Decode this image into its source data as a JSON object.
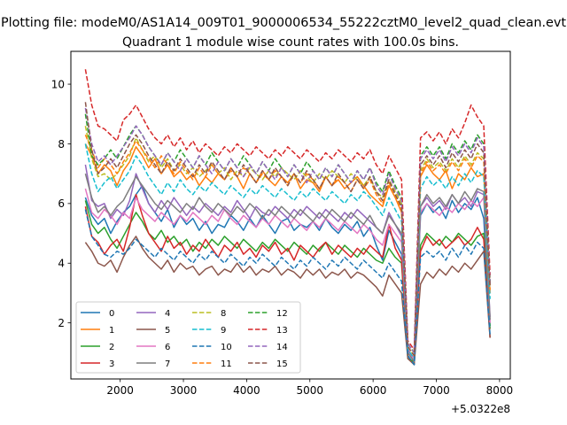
{
  "figure": {
    "suptitle": "Plotting file: modeM0/AS1A14_009T01_9000006534_55222cztM0_level2_quad_clean.evt",
    "background": "#ffffff"
  },
  "chart_data": {
    "type": "line",
    "title": "Quadrant 1 module wise count rates with 100.0s bins.",
    "xlabel": "",
    "ylabel": "",
    "x_offset_label": "+5.0322e8",
    "xlim": [
      1220,
      8170
    ],
    "ylim": [
      0.12,
      11.1
    ],
    "xticks": [
      2000,
      3000,
      4000,
      5000,
      6000,
      7000,
      8000
    ],
    "xtick_labels": [
      "2000",
      "3000",
      "4000",
      "5000",
      "6000",
      "7000",
      "8000"
    ],
    "yticks": [
      2,
      4,
      6,
      8,
      10
    ],
    "ytick_labels": [
      "2",
      "4",
      "6",
      "8",
      "10"
    ],
    "grid": false,
    "legend": {
      "loc": "lower-left",
      "ncol": 4
    },
    "x": [
      1450,
      1550,
      1650,
      1750,
      1850,
      1950,
      2050,
      2150,
      2250,
      2350,
      2450,
      2550,
      2650,
      2750,
      2850,
      2950,
      3050,
      3150,
      3250,
      3350,
      3450,
      3550,
      3650,
      3750,
      3850,
      3950,
      4050,
      4150,
      4250,
      4350,
      4450,
      4550,
      4650,
      4750,
      4850,
      4950,
      5050,
      5150,
      5250,
      5350,
      5450,
      5550,
      5650,
      5750,
      5850,
      5950,
      6050,
      6150,
      6250,
      6350,
      6450,
      6550,
      6650,
      6750,
      6850,
      6950,
      7050,
      7150,
      7250,
      7350,
      7450,
      7550,
      7650,
      7750,
      7850
    ],
    "series": [
      {
        "name": "0",
        "color": "#1f77b4",
        "style": "solid",
        "values": [
          6.2,
          5.6,
          5.3,
          5.5,
          5.0,
          5.4,
          5.7,
          5.9,
          6.3,
          6.6,
          6.0,
          5.7,
          5.4,
          5.8,
          5.2,
          5.6,
          5.3,
          5.5,
          5.1,
          5.4,
          5.0,
          5.3,
          5.2,
          5.6,
          5.4,
          5.1,
          5.5,
          5.2,
          5.6,
          5.3,
          5.0,
          5.4,
          5.5,
          5.1,
          5.3,
          5.2,
          5.4,
          5.1,
          5.5,
          5.2,
          5.0,
          5.3,
          5.1,
          5.4,
          4.9,
          5.2,
          4.6,
          4.1,
          5.1,
          4.7,
          4.3,
          0.9,
          0.6,
          5.6,
          6.0,
          5.7,
          5.9,
          5.5,
          6.1,
          5.7,
          6.0,
          5.8,
          6.2,
          5.5,
          1.9
        ]
      },
      {
        "name": "1",
        "color": "#ff7f0e",
        "style": "solid",
        "values": [
          8.0,
          7.6,
          7.0,
          7.3,
          7.1,
          6.6,
          7.1,
          7.4,
          7.9,
          7.6,
          7.2,
          7.5,
          7.0,
          7.3,
          6.9,
          7.1,
          6.8,
          7.0,
          6.6,
          6.9,
          6.7,
          7.0,
          6.8,
          7.2,
          6.9,
          6.5,
          7.0,
          6.7,
          7.1,
          6.8,
          6.6,
          6.9,
          6.7,
          7.0,
          6.5,
          6.8,
          6.7,
          6.4,
          6.9,
          6.6,
          6.8,
          6.5,
          6.7,
          6.9,
          6.6,
          6.3,
          6.1,
          5.9,
          6.6,
          6.2,
          5.7,
          1.1,
          0.8,
          6.9,
          7.3,
          7.0,
          6.8,
          7.1,
          6.5,
          7.0,
          6.8,
          7.2,
          6.9,
          7.0,
          3.0
        ]
      },
      {
        "name": "2",
        "color": "#2ca02c",
        "style": "solid",
        "values": [
          6.1,
          5.3,
          5.0,
          5.2,
          4.8,
          4.5,
          4.9,
          5.3,
          5.7,
          5.4,
          5.0,
          4.8,
          5.1,
          4.7,
          4.9,
          4.6,
          4.8,
          4.4,
          4.7,
          4.5,
          4.8,
          4.6,
          4.9,
          4.7,
          4.5,
          4.8,
          4.6,
          4.4,
          4.7,
          4.5,
          4.8,
          4.6,
          4.4,
          4.7,
          4.5,
          4.3,
          4.6,
          4.4,
          4.7,
          4.5,
          4.3,
          4.6,
          4.4,
          4.2,
          4.5,
          4.3,
          4.1,
          4.0,
          4.5,
          4.2,
          4.0,
          0.8,
          0.7,
          4.6,
          5.0,
          4.8,
          4.6,
          4.9,
          4.7,
          5.0,
          4.8,
          4.6,
          4.9,
          5.0,
          1.8
        ]
      },
      {
        "name": "3",
        "color": "#d62728",
        "style": "solid",
        "values": [
          5.9,
          4.9,
          4.7,
          4.3,
          4.6,
          4.8,
          4.4,
          5.2,
          6.3,
          5.6,
          5.0,
          4.7,
          4.4,
          4.9,
          4.5,
          4.7,
          4.3,
          4.6,
          4.4,
          4.8,
          4.5,
          4.2,
          4.6,
          4.4,
          4.7,
          4.3,
          4.5,
          4.2,
          4.6,
          4.4,
          4.7,
          4.3,
          4.5,
          4.1,
          4.6,
          4.4,
          4.2,
          4.5,
          4.7,
          4.3,
          4.6,
          4.4,
          4.2,
          4.5,
          4.3,
          4.6,
          4.4,
          4.2,
          5.3,
          4.5,
          4.1,
          1.0,
          0.7,
          4.4,
          4.9,
          4.6,
          4.8,
          4.5,
          4.7,
          4.9,
          4.6,
          4.8,
          5.2,
          4.8,
          1.5
        ]
      },
      {
        "name": "4",
        "color": "#9467bd",
        "style": "solid",
        "values": [
          7.3,
          6.1,
          5.9,
          6.0,
          5.5,
          5.8,
          5.6,
          6.1,
          7.0,
          6.5,
          6.0,
          5.7,
          6.1,
          5.8,
          6.2,
          5.9,
          5.6,
          5.9,
          5.7,
          6.0,
          5.8,
          5.6,
          5.9,
          5.7,
          6.1,
          5.8,
          5.5,
          5.9,
          5.7,
          5.6,
          5.9,
          5.7,
          5.5,
          5.8,
          5.6,
          5.9,
          5.7,
          5.5,
          5.8,
          5.6,
          5.4,
          5.7,
          5.5,
          5.8,
          5.6,
          5.4,
          5.2,
          5.0,
          5.7,
          5.3,
          4.9,
          1.1,
          0.8,
          5.9,
          6.2,
          5.9,
          6.1,
          5.8,
          6.3,
          6.0,
          6.2,
          5.9,
          6.4,
          6.3,
          2.2
        ]
      },
      {
        "name": "5",
        "color": "#8c564b",
        "style": "solid",
        "values": [
          4.7,
          4.4,
          4.0,
          3.9,
          4.1,
          3.7,
          4.2,
          4.6,
          4.9,
          4.5,
          4.2,
          4.0,
          3.8,
          4.1,
          3.7,
          4.0,
          3.8,
          3.9,
          3.6,
          3.8,
          3.9,
          3.6,
          3.8,
          3.7,
          4.0,
          3.7,
          3.9,
          3.6,
          3.8,
          3.7,
          3.9,
          3.6,
          3.8,
          3.7,
          3.5,
          3.8,
          3.6,
          3.8,
          3.5,
          3.7,
          3.6,
          3.8,
          3.5,
          3.7,
          3.6,
          3.4,
          3.2,
          2.9,
          3.6,
          3.3,
          3.0,
          0.8,
          0.6,
          3.3,
          3.7,
          3.5,
          3.8,
          3.6,
          3.9,
          3.7,
          4.0,
          3.8,
          4.1,
          4.4,
          1.5
        ]
      },
      {
        "name": "6",
        "color": "#e377c2",
        "style": "solid",
        "values": [
          6.5,
          5.7,
          5.5,
          5.8,
          5.6,
          5.3,
          5.7,
          5.5,
          6.2,
          5.8,
          5.6,
          5.4,
          5.7,
          5.5,
          5.3,
          5.6,
          5.4,
          5.7,
          5.5,
          5.3,
          5.6,
          5.4,
          5.8,
          5.5,
          5.3,
          5.6,
          5.4,
          5.2,
          5.5,
          5.3,
          5.6,
          5.4,
          5.2,
          5.5,
          5.3,
          5.1,
          5.4,
          5.2,
          5.5,
          5.3,
          5.1,
          5.4,
          5.2,
          5.0,
          5.3,
          5.1,
          4.8,
          4.6,
          5.3,
          5.0,
          4.7,
          1.0,
          0.8,
          5.7,
          6.0,
          5.8,
          5.6,
          5.9,
          5.7,
          6.0,
          5.8,
          6.1,
          5.9,
          6.2,
          2.0
        ]
      },
      {
        "name": "7",
        "color": "#7f7f7f",
        "style": "solid",
        "values": [
          7.0,
          6.2,
          5.7,
          5.9,
          5.6,
          5.9,
          6.1,
          6.5,
          6.9,
          6.6,
          6.3,
          6.0,
          5.8,
          6.1,
          5.9,
          5.7,
          6.0,
          5.8,
          6.2,
          5.9,
          5.7,
          6.0,
          5.8,
          5.6,
          5.9,
          5.7,
          6.0,
          5.8,
          5.5,
          5.8,
          5.6,
          5.9,
          5.7,
          5.5,
          5.8,
          5.6,
          5.4,
          5.7,
          5.5,
          5.8,
          5.6,
          5.4,
          5.7,
          5.5,
          5.3,
          5.6,
          5.2,
          5.0,
          5.6,
          5.3,
          5.0,
          1.0,
          0.7,
          5.9,
          6.3,
          6.0,
          6.2,
          5.9,
          6.3,
          6.0,
          6.4,
          6.1,
          6.5,
          6.4,
          2.1
        ]
      },
      {
        "name": "8",
        "color": "#bcbd22",
        "style": "dashed",
        "values": [
          8.6,
          7.5,
          6.9,
          7.0,
          6.8,
          7.0,
          7.3,
          7.6,
          8.2,
          7.8,
          7.4,
          7.6,
          7.2,
          7.5,
          7.1,
          7.3,
          7.0,
          7.2,
          6.9,
          7.1,
          7.3,
          7.0,
          7.2,
          6.8,
          7.1,
          6.9,
          7.2,
          7.0,
          6.8,
          7.1,
          6.9,
          7.2,
          7.0,
          6.8,
          7.1,
          6.9,
          6.7,
          7.0,
          6.8,
          7.1,
          6.9,
          6.7,
          7.0,
          6.8,
          6.6,
          6.9,
          6.4,
          6.2,
          6.8,
          6.4,
          6.0,
          1.2,
          0.9,
          7.1,
          7.5,
          7.2,
          7.4,
          7.1,
          7.5,
          7.2,
          7.6,
          7.3,
          7.7,
          7.5,
          3.2
        ]
      },
      {
        "name": "9",
        "color": "#17becf",
        "style": "dashed",
        "values": [
          8.0,
          7.0,
          6.4,
          6.7,
          6.9,
          6.5,
          6.8,
          7.1,
          7.6,
          7.3,
          6.9,
          6.6,
          6.3,
          6.7,
          6.4,
          6.8,
          6.5,
          6.3,
          6.6,
          6.4,
          6.7,
          6.5,
          6.3,
          6.6,
          6.4,
          6.2,
          6.5,
          6.3,
          6.6,
          6.4,
          6.2,
          6.5,
          6.3,
          6.1,
          6.4,
          6.2,
          6.5,
          6.3,
          6.1,
          6.4,
          6.2,
          6.0,
          6.3,
          6.1,
          6.4,
          6.2,
          5.9,
          5.6,
          6.2,
          5.8,
          5.4,
          1.1,
          0.8,
          6.5,
          6.9,
          6.6,
          6.8,
          6.5,
          6.9,
          6.6,
          7.0,
          6.7,
          7.1,
          6.9,
          2.8
        ]
      },
      {
        "name": "10",
        "color": "#1f77b4",
        "style": "dashed",
        "values": [
          5.8,
          4.9,
          4.6,
          4.3,
          4.2,
          4.4,
          4.3,
          4.5,
          4.8,
          4.6,
          4.4,
          4.2,
          4.5,
          4.3,
          4.1,
          4.4,
          4.2,
          4.0,
          4.3,
          4.1,
          4.4,
          4.2,
          4.0,
          4.3,
          4.1,
          3.9,
          4.2,
          4.0,
          4.3,
          4.1,
          3.9,
          4.2,
          4.0,
          3.8,
          4.1,
          3.9,
          4.2,
          4.0,
          3.8,
          4.1,
          3.9,
          4.2,
          4.0,
          3.8,
          4.1,
          3.9,
          3.7,
          3.5,
          4.0,
          3.7,
          3.4,
          0.9,
          0.6,
          4.2,
          4.4,
          4.2,
          4.4,
          4.1,
          4.5,
          4.2,
          4.6,
          4.3,
          4.7,
          4.5,
          1.6
        ]
      },
      {
        "name": "11",
        "color": "#ff7f0e",
        "style": "dashed",
        "values": [
          8.3,
          7.8,
          7.2,
          7.5,
          7.3,
          7.0,
          7.4,
          7.7,
          8.1,
          7.8,
          7.5,
          7.2,
          7.6,
          7.3,
          7.0,
          7.4,
          7.1,
          6.8,
          7.2,
          6.9,
          7.3,
          7.0,
          6.8,
          7.1,
          6.9,
          7.2,
          7.0,
          6.7,
          7.0,
          6.8,
          7.1,
          6.9,
          6.6,
          7.0,
          6.7,
          7.0,
          6.8,
          6.5,
          6.9,
          6.6,
          6.9,
          6.7,
          6.4,
          6.8,
          6.5,
          6.8,
          6.3,
          6.0,
          6.7,
          6.3,
          5.8,
          1.2,
          0.9,
          7.0,
          7.4,
          7.1,
          7.3,
          7.0,
          7.4,
          7.1,
          7.5,
          7.2,
          7.6,
          7.4,
          3.1
        ]
      },
      {
        "name": "12",
        "color": "#2ca02c",
        "style": "dashed",
        "values": [
          9.0,
          7.6,
          7.3,
          7.5,
          7.8,
          7.5,
          7.9,
          8.3,
          8.6,
          8.3,
          7.9,
          7.6,
          7.3,
          7.7,
          7.4,
          7.8,
          7.5,
          7.2,
          7.6,
          7.3,
          7.7,
          7.4,
          7.1,
          7.5,
          7.2,
          7.6,
          7.3,
          7.0,
          7.4,
          7.1,
          7.5,
          7.2,
          6.9,
          7.3,
          7.0,
          7.4,
          7.1,
          6.8,
          7.2,
          6.9,
          7.3,
          7.0,
          6.7,
          7.1,
          6.8,
          7.2,
          6.7,
          6.4,
          7.1,
          6.6,
          6.2,
          1.3,
          1.0,
          7.6,
          7.9,
          7.6,
          7.9,
          7.5,
          8.0,
          7.7,
          8.1,
          7.8,
          8.3,
          8.0,
          3.4
        ]
      },
      {
        "name": "13",
        "color": "#d62728",
        "style": "dashed",
        "values": [
          10.5,
          9.3,
          8.6,
          8.5,
          8.3,
          8.1,
          8.8,
          9.0,
          9.3,
          8.9,
          8.5,
          8.2,
          8.0,
          8.3,
          7.9,
          8.2,
          7.8,
          8.1,
          7.7,
          8.0,
          7.8,
          7.6,
          7.9,
          7.7,
          8.0,
          7.8,
          7.6,
          7.9,
          7.7,
          7.5,
          7.8,
          7.6,
          7.9,
          7.7,
          7.5,
          7.8,
          7.6,
          7.4,
          7.7,
          7.5,
          7.8,
          7.6,
          7.4,
          7.7,
          7.5,
          7.8,
          7.3,
          7.0,
          7.6,
          7.2,
          6.8,
          1.4,
          1.1,
          8.2,
          8.4,
          8.1,
          8.4,
          8.0,
          8.5,
          8.2,
          8.7,
          9.3,
          8.9,
          8.6,
          3.6
        ]
      },
      {
        "name": "14",
        "color": "#9467bd",
        "style": "dashed",
        "values": [
          9.2,
          8.0,
          7.4,
          7.6,
          7.3,
          7.6,
          7.9,
          8.2,
          8.6,
          8.3,
          7.9,
          7.6,
          7.3,
          7.7,
          7.4,
          7.1,
          7.5,
          7.2,
          7.6,
          7.3,
          7.0,
          7.4,
          7.1,
          7.5,
          7.2,
          6.9,
          7.3,
          7.0,
          7.4,
          7.1,
          6.8,
          7.2,
          6.9,
          7.3,
          7.0,
          6.7,
          7.1,
          6.8,
          7.2,
          6.9,
          7.3,
          7.0,
          6.7,
          7.1,
          6.8,
          7.2,
          6.6,
          6.3,
          7.0,
          6.5,
          6.1,
          1.3,
          1.0,
          7.5,
          7.8,
          7.5,
          7.8,
          7.4,
          7.9,
          7.6,
          8.0,
          7.7,
          8.2,
          7.9,
          3.3
        ]
      },
      {
        "name": "15",
        "color": "#8c564b",
        "style": "dashed",
        "values": [
          9.4,
          7.8,
          7.0,
          7.2,
          7.5,
          7.2,
          7.6,
          8.0,
          8.3,
          8.0,
          7.6,
          7.3,
          7.0,
          7.4,
          7.1,
          7.5,
          7.2,
          6.9,
          7.3,
          7.0,
          7.4,
          7.1,
          6.8,
          7.2,
          6.9,
          7.3,
          7.0,
          6.7,
          7.1,
          6.8,
          7.2,
          6.9,
          6.6,
          7.0,
          6.7,
          7.1,
          6.8,
          6.5,
          6.9,
          6.6,
          7.0,
          6.7,
          6.4,
          6.8,
          6.5,
          6.9,
          6.4,
          6.1,
          6.8,
          6.3,
          5.9,
          1.2,
          0.9,
          7.3,
          7.6,
          7.3,
          7.6,
          7.2,
          7.7,
          7.4,
          7.8,
          7.5,
          8.0,
          7.7,
          3.2
        ]
      }
    ]
  }
}
